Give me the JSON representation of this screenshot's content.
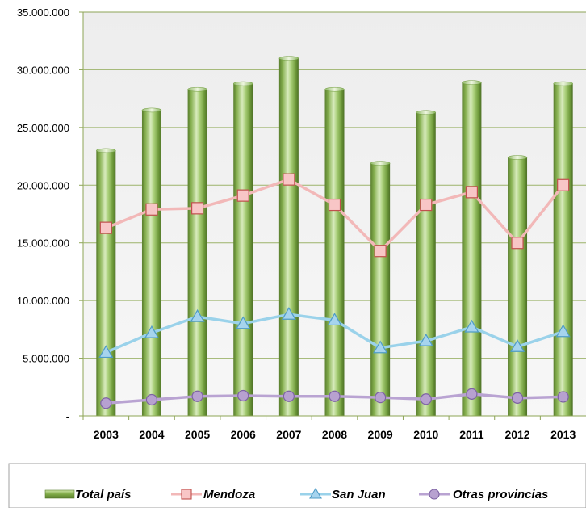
{
  "chart_data": {
    "type": "bar",
    "categories": [
      "2003",
      "2004",
      "2005",
      "2006",
      "2007",
      "2008",
      "2009",
      "2010",
      "2011",
      "2012",
      "2013"
    ],
    "ylim": [
      0,
      35000000
    ],
    "yticks": [
      {
        "value": 0,
        "label": "-"
      },
      {
        "value": 5000000,
        "label": "5.000.000"
      },
      {
        "value": 10000000,
        "label": "10.000.000"
      },
      {
        "value": 15000000,
        "label": "15.000.000"
      },
      {
        "value": 20000000,
        "label": "20.000.000"
      },
      {
        "value": 25000000,
        "label": "25.000.000"
      },
      {
        "value": 30000000,
        "label": "30.000.000"
      },
      {
        "value": 35000000,
        "label": "35.000.000"
      }
    ],
    "grid": true,
    "legend_position": "bottom",
    "series": [
      {
        "name": "Total país",
        "kind": "bar",
        "color": "#7fae4a",
        "values": [
          23000000,
          26500000,
          28300000,
          28800000,
          31000000,
          28300000,
          21900000,
          26300000,
          28900000,
          22400000,
          28800000
        ]
      },
      {
        "name": "Mendoza",
        "kind": "line",
        "marker": "square",
        "color": "#f2b8b8",
        "marker_fill": "#f8c6c6",
        "marker_stroke": "#c0504d",
        "values": [
          16300000,
          17900000,
          18000000,
          19100000,
          20500000,
          18300000,
          14300000,
          18300000,
          19400000,
          15000000,
          20000000
        ]
      },
      {
        "name": "San Juan",
        "kind": "line",
        "marker": "triangle",
        "color": "#9ad2ea",
        "marker_fill": "#a6d4ee",
        "marker_stroke": "#4f9cc6",
        "values": [
          5500000,
          7200000,
          8600000,
          8000000,
          8800000,
          8300000,
          5900000,
          6500000,
          7700000,
          6000000,
          7300000
        ]
      },
      {
        "name": "Otras provincias",
        "kind": "line",
        "marker": "circle",
        "color": "#b9a3d2",
        "marker_fill": "#b7a1d0",
        "marker_stroke": "#7d62a3",
        "values": [
          1100000,
          1400000,
          1700000,
          1750000,
          1700000,
          1700000,
          1600000,
          1450000,
          1900000,
          1550000,
          1650000
        ]
      }
    ]
  }
}
